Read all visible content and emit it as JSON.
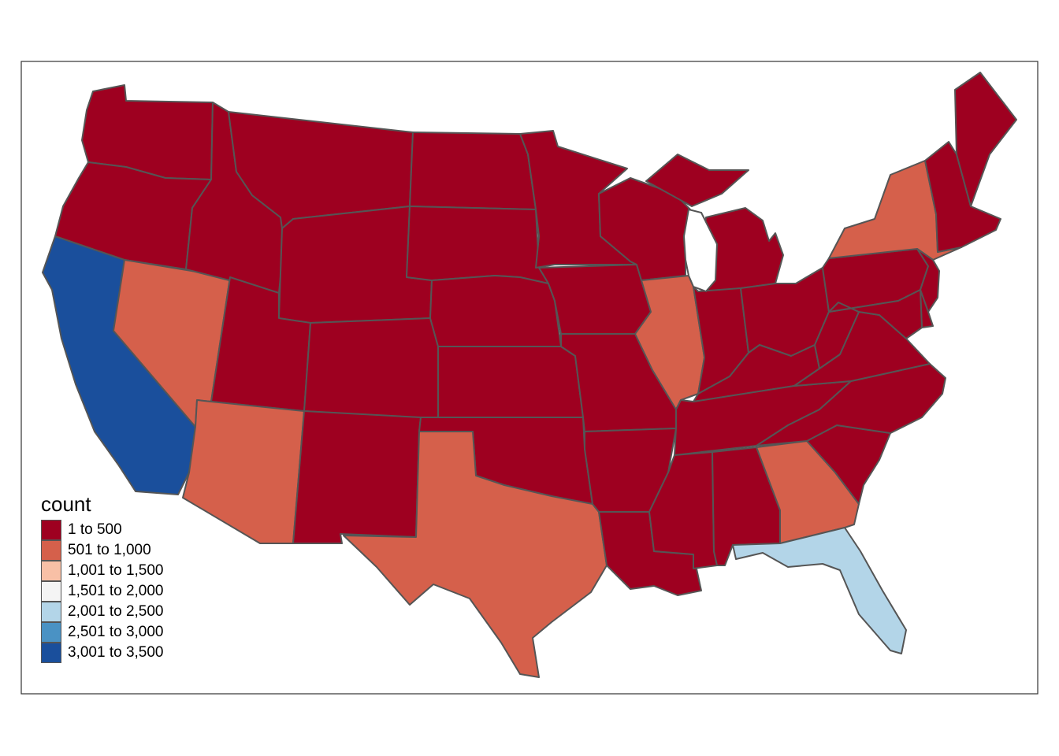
{
  "legend": {
    "title": "count",
    "classes": [
      {
        "label": "1 to 500",
        "color": "#9e0020"
      },
      {
        "label": "501 to 1,000",
        "color": "#d5604b"
      },
      {
        "label": "1,001 to 1,500",
        "color": "#f8c0a6"
      },
      {
        "label": "1,501 to 2,000",
        "color": "#f4f4f4"
      },
      {
        "label": "2,001 to 2,500",
        "color": "#b3d5e8"
      },
      {
        "label": "2,501 to 3,000",
        "color": "#4a92c4"
      },
      {
        "label": "3,001 to 3,500",
        "color": "#1a4f9c"
      }
    ]
  },
  "regions": [
    {
      "id": "washington",
      "class": "1 to 500"
    },
    {
      "id": "oregon",
      "class": "1 to 500"
    },
    {
      "id": "california",
      "class": "3,001 to 3,500"
    },
    {
      "id": "nevada",
      "class": "501 to 1,000"
    },
    {
      "id": "idaho",
      "class": "1 to 500"
    },
    {
      "id": "montana",
      "class": "1 to 500"
    },
    {
      "id": "wyoming",
      "class": "1 to 500"
    },
    {
      "id": "utah",
      "class": "1 to 500"
    },
    {
      "id": "arizona",
      "class": "501 to 1,000"
    },
    {
      "id": "colorado",
      "class": "1 to 500"
    },
    {
      "id": "new-mexico",
      "class": "1 to 500"
    },
    {
      "id": "north-dakota",
      "class": "1 to 500"
    },
    {
      "id": "south-dakota",
      "class": "1 to 500"
    },
    {
      "id": "nebraska",
      "class": "1 to 500"
    },
    {
      "id": "kansas",
      "class": "1 to 500"
    },
    {
      "id": "oklahoma",
      "class": "1 to 500"
    },
    {
      "id": "texas",
      "class": "501 to 1,000"
    },
    {
      "id": "minnesota",
      "class": "1 to 500"
    },
    {
      "id": "iowa",
      "class": "1 to 500"
    },
    {
      "id": "missouri",
      "class": "1 to 500"
    },
    {
      "id": "arkansas",
      "class": "1 to 500"
    },
    {
      "id": "louisiana",
      "class": "1 to 500"
    },
    {
      "id": "wisconsin",
      "class": "1 to 500"
    },
    {
      "id": "illinois",
      "class": "501 to 1,000"
    },
    {
      "id": "michigan",
      "class": "1 to 500"
    },
    {
      "id": "indiana",
      "class": "1 to 500"
    },
    {
      "id": "ohio",
      "class": "1 to 500"
    },
    {
      "id": "kentucky",
      "class": "1 to 500"
    },
    {
      "id": "tennessee",
      "class": "1 to 500"
    },
    {
      "id": "mississippi",
      "class": "1 to 500"
    },
    {
      "id": "alabama",
      "class": "1 to 500"
    },
    {
      "id": "georgia",
      "class": "501 to 1,000"
    },
    {
      "id": "florida",
      "class": "2,001 to 2,500"
    },
    {
      "id": "south-carolina",
      "class": "1 to 500"
    },
    {
      "id": "north-carolina",
      "class": "1 to 500"
    },
    {
      "id": "virginia",
      "class": "1 to 500"
    },
    {
      "id": "west-virginia",
      "class": "1 to 500"
    },
    {
      "id": "pennsylvania",
      "class": "1 to 500"
    },
    {
      "id": "new-york",
      "class": "501 to 1,000"
    },
    {
      "id": "new-jersey",
      "class": "1 to 500"
    },
    {
      "id": "delaware",
      "class": "1 to 500"
    },
    {
      "id": "maryland",
      "class": "1 to 500"
    },
    {
      "id": "new-england",
      "class": "1 to 500"
    },
    {
      "id": "maine",
      "class": "1 to 500"
    }
  ]
}
